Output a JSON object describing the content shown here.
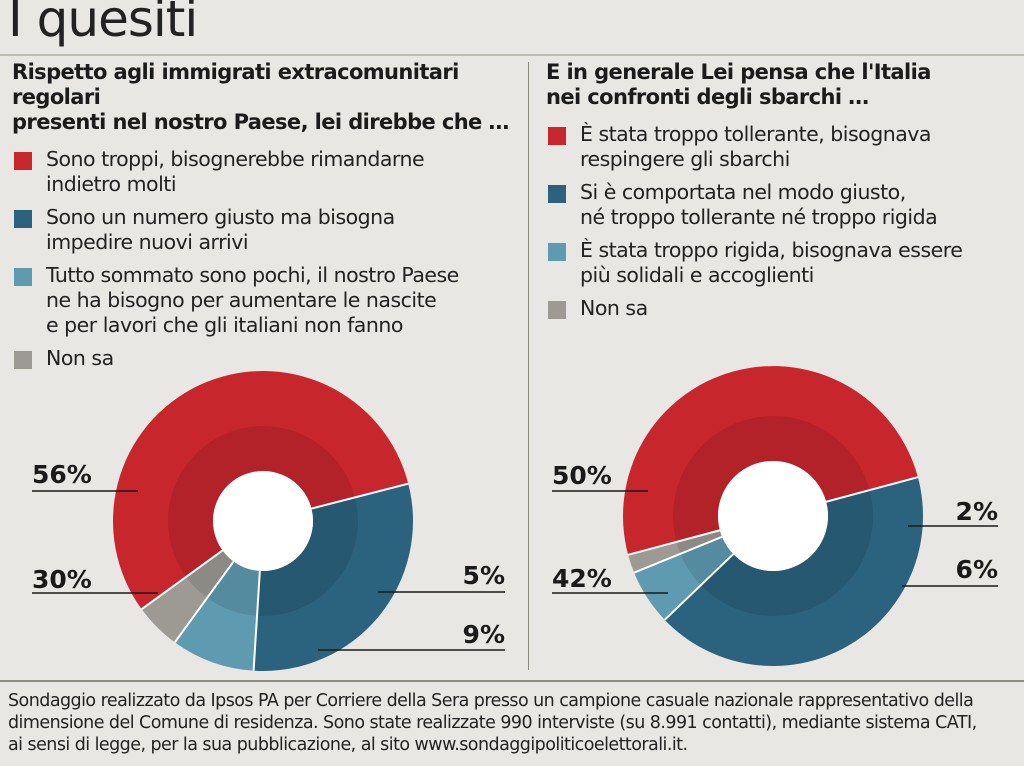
{
  "title": "I quesiti",
  "colors": {
    "red": "#c8262d",
    "dark_teal": "#2b637e",
    "light_teal": "#5f9bb0",
    "gray": "#9c9a93"
  },
  "chart_data": [
    {
      "type": "pie",
      "question": "Rispetto agli immigrati extracomunitari regolari presenti nel nostro Paese, lei  direbbe che …",
      "legend": [
        "Sono troppi, bisognerebbe rimandarne indietro molti",
        "Sono un numero giusto ma bisogna impedire nuovi arrivi",
        "Tutto sommato sono pochi, il nostro Paese ne ha bisogno per aumentare le nascite e per lavori che gli italiani non fanno",
        "Non sa"
      ],
      "values": [
        56,
        30,
        9,
        5
      ],
      "labels": [
        "56%",
        "30%",
        "9%",
        "5%"
      ],
      "question_lines": [
        "Rispetto agli immigrati extracomunitari regolari",
        "presenti nel nostro Paese, lei  direbbe che …"
      ],
      "legend_lines": [
        [
          "Sono troppi, bisognerebbe rimandarne",
          "indietro molti"
        ],
        [
          "Sono un numero giusto ma bisogna",
          "impedire nuovi arrivi"
        ],
        [
          "Tutto sommato sono pochi, il nostro Paese",
          "ne ha bisogno per aumentare le nascite",
          "e per lavori che gli italiani non fanno"
        ],
        [
          "Non sa"
        ]
      ]
    },
    {
      "type": "pie",
      "question": "E in generale Lei pensa che l'Italia nei confronti degli sbarchi …",
      "legend": [
        "È stata troppo tollerante, bisognava respingere gli sbarchi",
        "Si è comportata nel modo giusto, né troppo tollerante né troppo rigida",
        "È stata troppo rigida, bisognava essere più solidali e accoglienti",
        "Non sa"
      ],
      "values": [
        50,
        42,
        6,
        2
      ],
      "labels": [
        "50%",
        "42%",
        "6%",
        "2%"
      ],
      "question_lines": [
        "E in generale Lei pensa che l'Italia",
        "nei confronti degli sbarchi …"
      ],
      "legend_lines": [
        [
          "È stata troppo tollerante, bisognava",
          "respingere gli sbarchi"
        ],
        [
          "Si è comportata nel modo giusto,",
          "né troppo tollerante né troppo rigida"
        ],
        [
          "È stata troppo rigida, bisognava essere",
          "più solidali e accoglienti"
        ],
        [
          "Non sa"
        ]
      ]
    }
  ],
  "footer_lines": [
    "Sondaggio realizzato da Ipsos PA per Corriere della Sera presso un campione casuale nazionale rappresentativo della",
    "dimensione del Comune di residenza. Sono state realizzate 990 interviste (su 8.991 contatti), mediante sistema CATI,",
    "ai sensi di legge, per la sua pubblicazione, al sito www.sondaggipoliticoelettorali.it."
  ]
}
